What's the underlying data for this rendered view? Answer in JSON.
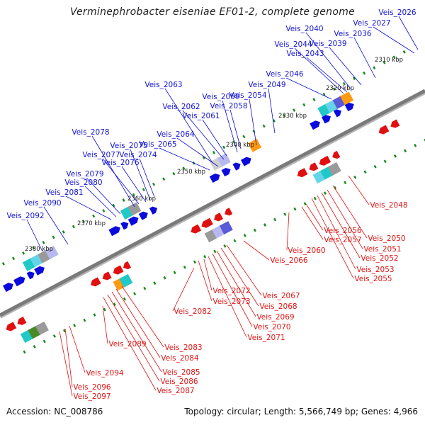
{
  "title": "Verminephrobacter eiseniae EF01-2, complete genome",
  "footer": {
    "accession": "Accession: NC_008786",
    "topology": "Topology: circular; Length: 5,566,749 bp; Genes: 4,966"
  },
  "colors": {
    "backbone": "#7a7a7a",
    "forward": "#0a0adc",
    "reverse": "#e01010",
    "tick": "#1a8a1a",
    "forward_label": "#1414d2",
    "reverse_label": "#e01414"
  },
  "kbp_labels": [
    "2310 kbp",
    "2320 kbp",
    "2330 kbp",
    "2340 kbp",
    "2350 kbp",
    "2360 kbp",
    "2370 kbp",
    "2380 kbp"
  ],
  "forward_genes": [
    "Veis_2026",
    "Veis_2027",
    "Veis_2036",
    "Veis_2039",
    "Veis_2040",
    "Veis_2043",
    "Veis_2044",
    "Veis_2046",
    "Veis_2049",
    "Veis_2054",
    "Veis_2058",
    "Veis_2059",
    "Veis_2061",
    "Veis_2062",
    "Veis_2063",
    "Veis_2064",
    "Veis_2065",
    "Veis_2074",
    "Veis_2075",
    "Veis_2076",
    "Veis_2077",
    "Veis_2078",
    "Veis_2079",
    "Veis_2080",
    "Veis_2081",
    "Veis_2090",
    "Veis_2092"
  ],
  "reverse_genes": [
    "Veis_2048",
    "Veis_2050",
    "Veis_2051",
    "Veis_2052",
    "Veis_2053",
    "Veis_2055",
    "Veis_2056",
    "Veis_2057",
    "Veis_2060",
    "Veis_2066",
    "Veis_2067",
    "Veis_2068",
    "Veis_2069",
    "Veis_2070",
    "Veis_2071",
    "Veis_2072",
    "Veis_2073",
    "Veis_2082",
    "Veis_2083",
    "Veis_2084",
    "Veis_2085",
    "Veis_2086",
    "Veis_2087",
    "Veis_2089",
    "Veis_2094",
    "Veis_2096",
    "Veis_2097"
  ]
}
